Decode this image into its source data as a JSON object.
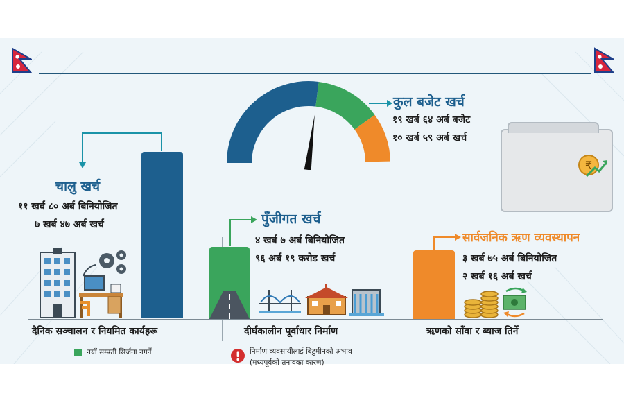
{
  "colors": {
    "blue": "#1d5f8e",
    "green": "#3aa55c",
    "orange": "#ef8a2a",
    "teal": "#1a93a8"
  },
  "budget": {
    "title": "कुल बजेट खर्च",
    "line1": "१९ खर्ब ६४ अर्ब बजेट",
    "line2": "१० खर्ब ५९ अर्ब खर्च",
    "spent_fraction": 0.54
  },
  "current": {
    "title": "चालु खर्च",
    "line1": "११ खर्ब ८० अर्ब बिनियोजित",
    "line2": "७ खर्ब ४७ अर्ब खर्च",
    "caption": "दैनिक सञ्चालन र नियमित कार्यहरू"
  },
  "capital": {
    "title": "पुँजीगत खर्च",
    "line1": "४ खर्ब ७ अर्ब बिनियोजित",
    "line2": "९६ अर्ब १९ करोड खर्च",
    "caption": "दीर्घकालीन पूर्वाधार निर्माण"
  },
  "debt": {
    "title": "सार्वजनिक ऋण व्यवस्थापन",
    "line1": "३ खर्ब ७५ अर्ब बिनियोजित",
    "line2": "२ खर्ब १६ अर्ब खर्च",
    "caption": "ऋणको साँवा र ब्याज तिर्ने"
  },
  "legend": {
    "green_note": "नयाँ सम्पती सिर्जना नगर्ने"
  },
  "warning": {
    "line1": "निर्माण व्यवसायीलाई बिटुमीनको अभाव",
    "line2": "(मध्यपूर्वको तनावका कारण)"
  },
  "icons": [
    "nepal-flag-icon",
    "office-building-icon",
    "gears-icon",
    "desk-computer-icon",
    "road-icon",
    "bridge-icon",
    "school-building-icon",
    "dam-icon",
    "coins-icon",
    "cash-exchange-icon",
    "rupee-growth-icon",
    "warning-icon"
  ]
}
